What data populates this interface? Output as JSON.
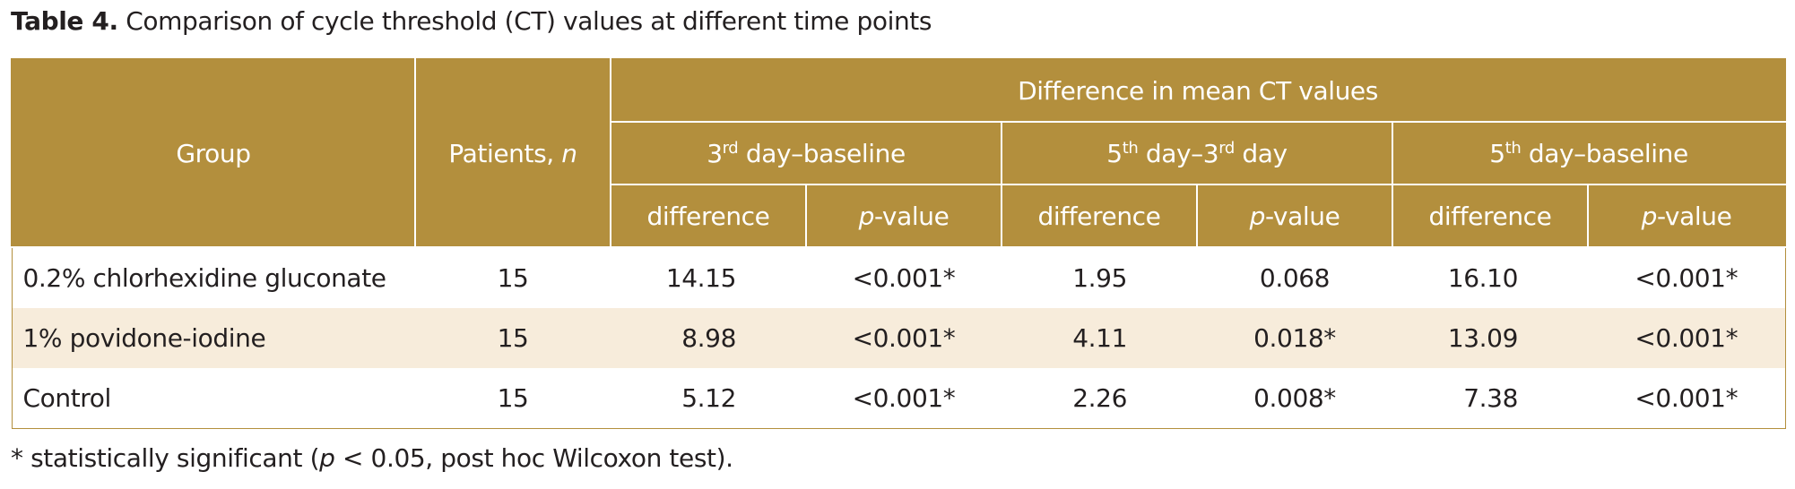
{
  "caption": {
    "label": "Table 4.",
    "text": " Comparison of cycle threshold (CT) values at different time points"
  },
  "header": {
    "group": "Group",
    "patients": "Patients, ",
    "patients_n": "n",
    "difference_title": "Difference in mean CT values",
    "periods": [
      {
        "pre": "3",
        "sup": "rd",
        "mid": " day–baseline",
        "sup2": "",
        "post": ""
      },
      {
        "pre": "5",
        "sup": "th",
        "mid": " day–3",
        "sup2": "rd",
        "post": " day"
      },
      {
        "pre": "5",
        "sup": "th",
        "mid": " day–baseline",
        "sup2": "",
        "post": ""
      }
    ],
    "sub_difference": "difference",
    "sub_p_italic": "p",
    "sub_p_rest": "-value"
  },
  "rows": [
    {
      "group": "0.2% chlorhexidine gluconate",
      "n": "15",
      "d1": "14.15",
      "p1": "<0.001*",
      "d2": "1.95",
      "p2": "0.068",
      "d3": "16.10",
      "p3": "<0.001*"
    },
    {
      "group": "1% povidone-iodine",
      "n": "15",
      "d1": "8.98",
      "p1": "<0.001*",
      "d2": "4.11",
      "p2": "0.018*",
      "d3": "13.09",
      "p3": "<0.001*"
    },
    {
      "group": "Control",
      "n": "15",
      "d1": "5.12",
      "p1": "<0.001*",
      "d2": "2.26",
      "p2": "0.008*",
      "d3": "7.38",
      "p3": "<0.001*"
    }
  ],
  "footnote": {
    "before": "* statistically significant (",
    "p": "p",
    "after": " < 0.05, post hoc Wilcoxon test)."
  },
  "colors": {
    "header_bg": "#b38f3d",
    "alt_row_bg": "#f7ecdb"
  }
}
